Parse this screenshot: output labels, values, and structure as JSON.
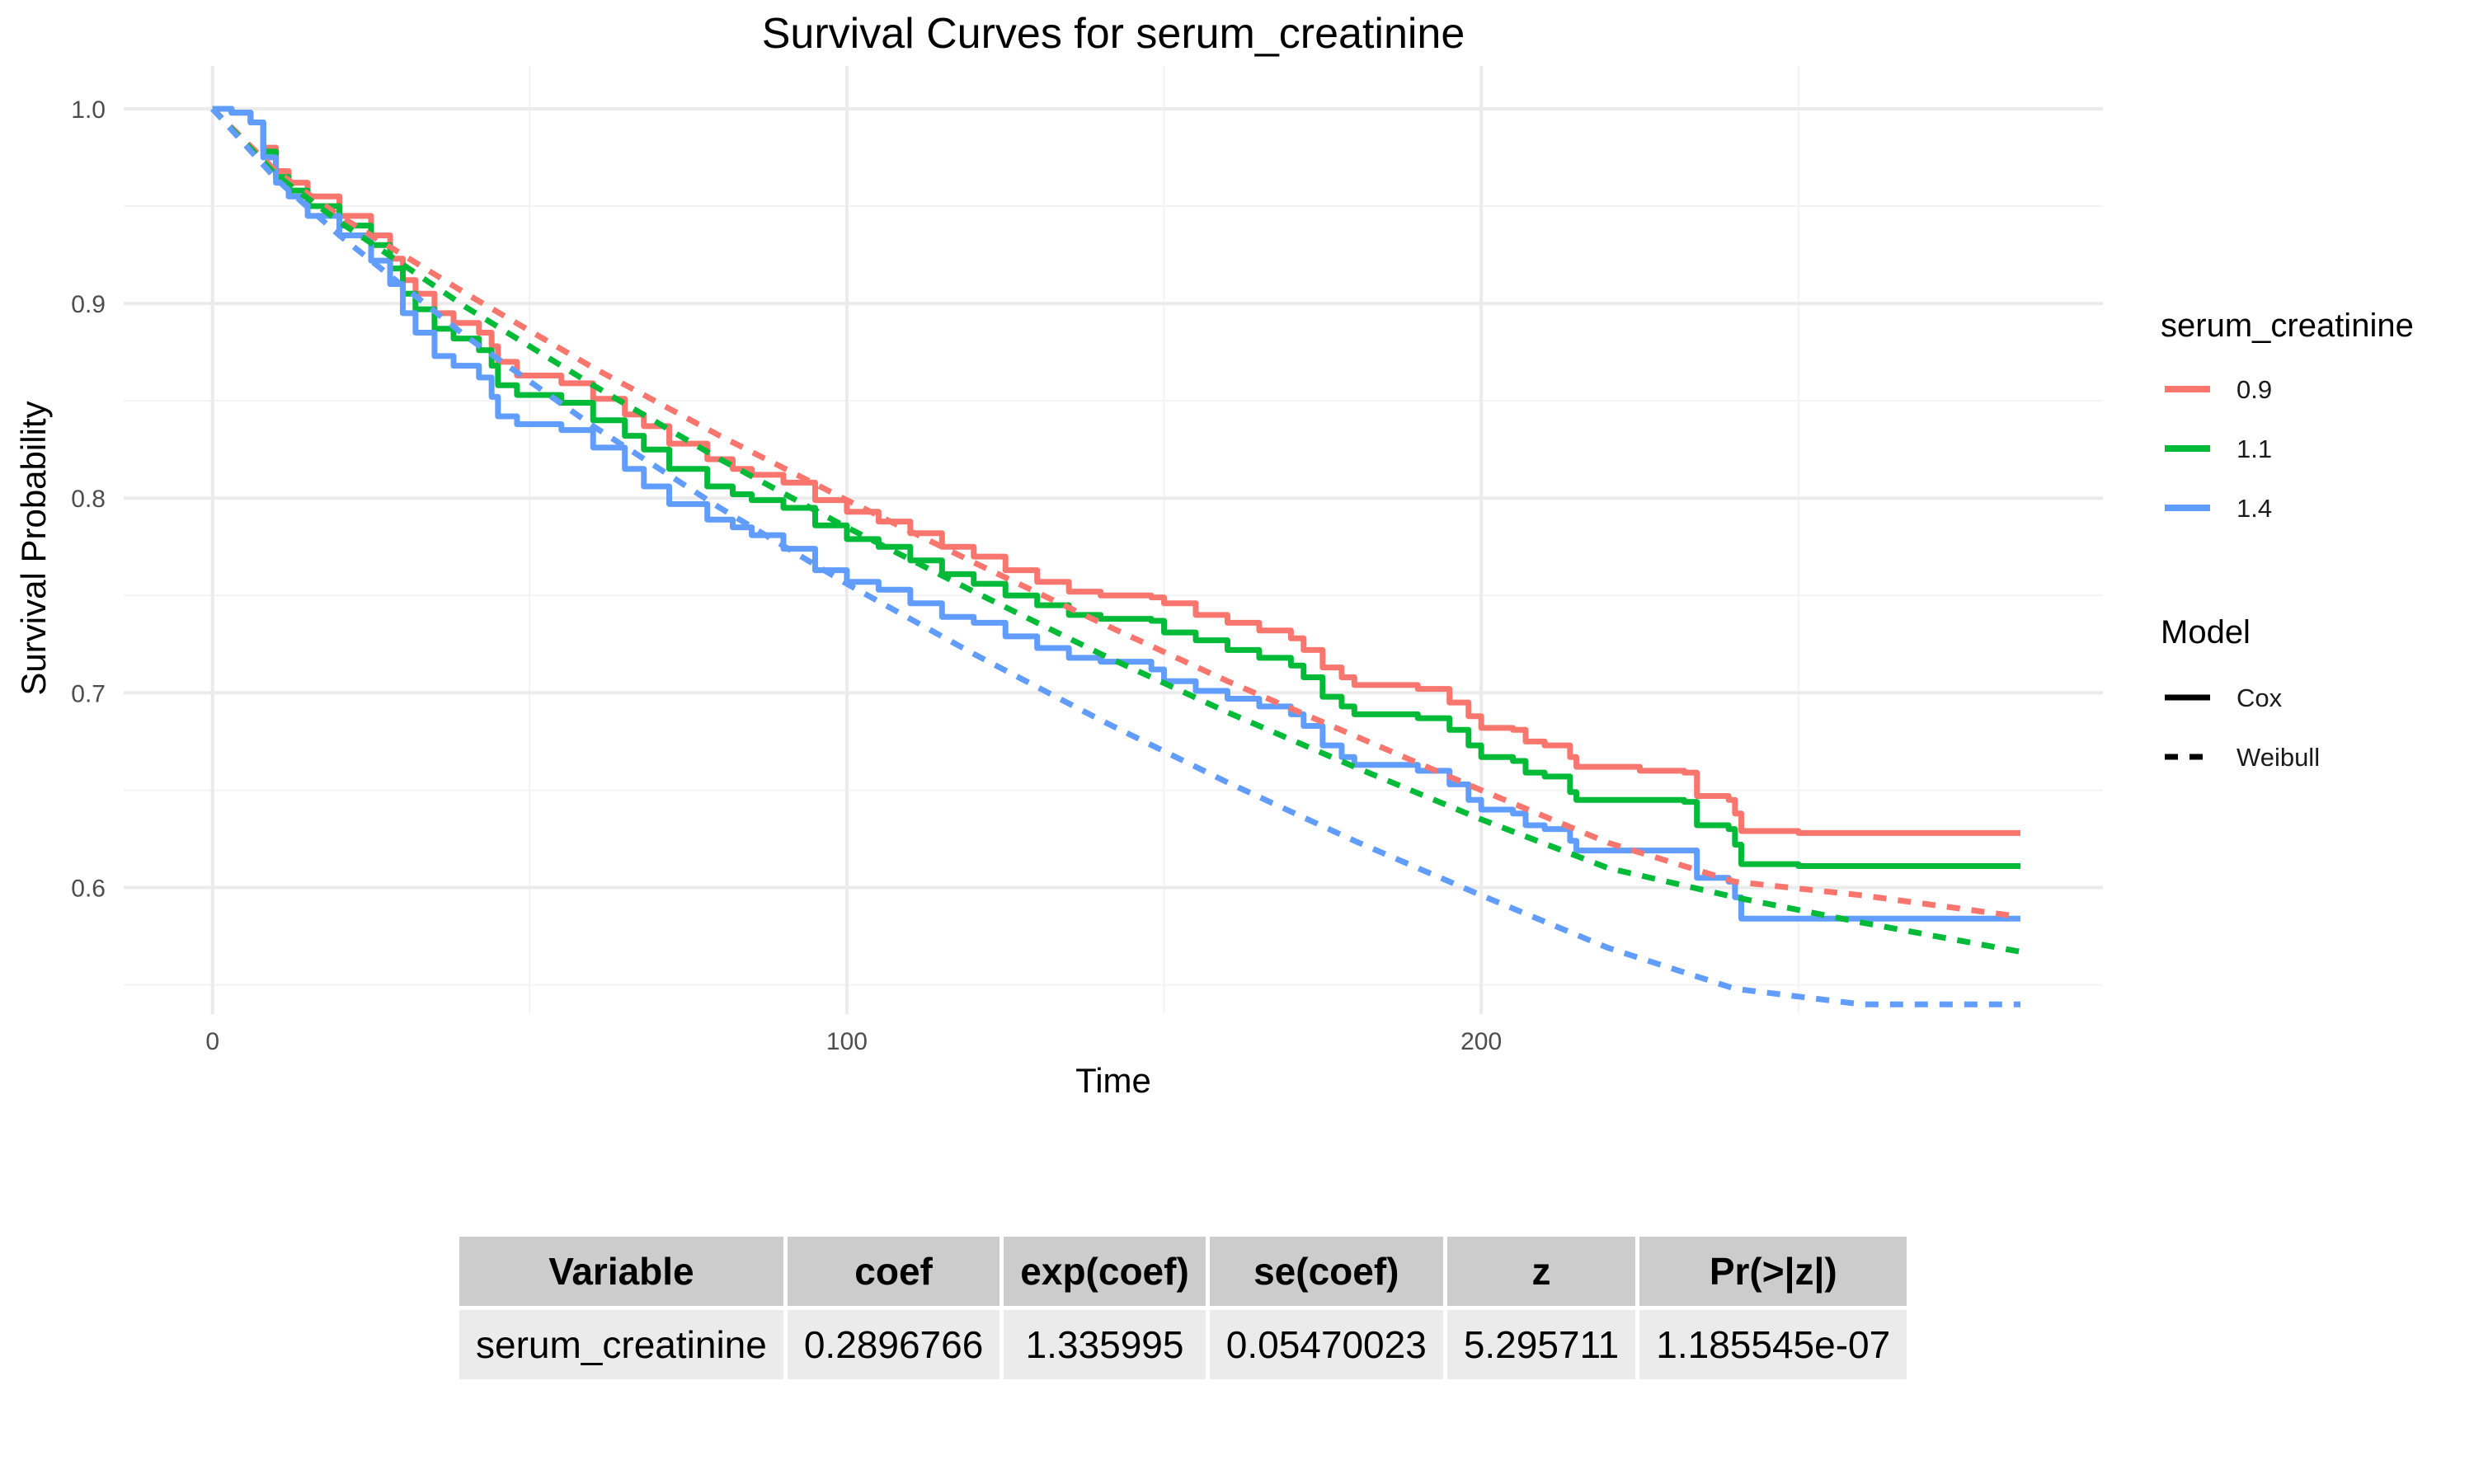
{
  "chart_data": {
    "type": "line",
    "title": "Survival Curves for serum_creatinine",
    "xlabel": "Time",
    "ylabel": "Survival Probability",
    "xlim": [
      -14,
      298
    ],
    "ylim": [
      0.535,
      1.022
    ],
    "xticks": [
      0,
      100,
      200
    ],
    "xtick_labels": [
      "0",
      "100",
      "200"
    ],
    "yticks": [
      0.6,
      0.7,
      0.8,
      0.9,
      1.0
    ],
    "ytick_labels": [
      "0.6",
      "0.7",
      "0.8",
      "0.9",
      "1.0"
    ],
    "grid": true,
    "legend": {
      "position": "right",
      "color_title": "serum_creatinine",
      "linetype_title": "Model",
      "linetype_entries": [
        "Cox",
        "Weibull"
      ]
    },
    "series": [
      {
        "name": "0.9",
        "model": "Cox",
        "color": "#f8766d",
        "points": [
          [
            0,
            1.0
          ],
          [
            3,
            0.998
          ],
          [
            6,
            0.993
          ],
          [
            8,
            0.98
          ],
          [
            10,
            0.968
          ],
          [
            12,
            0.962
          ],
          [
            15,
            0.955
          ],
          [
            20,
            0.945
          ],
          [
            25,
            0.935
          ],
          [
            28,
            0.923
          ],
          [
            30,
            0.912
          ],
          [
            32,
            0.905
          ],
          [
            35,
            0.895
          ],
          [
            38,
            0.89
          ],
          [
            42,
            0.885
          ],
          [
            44,
            0.878
          ],
          [
            45,
            0.87
          ],
          [
            48,
            0.863
          ],
          [
            55,
            0.859
          ],
          [
            60,
            0.851
          ],
          [
            65,
            0.843
          ],
          [
            68,
            0.837
          ],
          [
            72,
            0.828
          ],
          [
            78,
            0.82
          ],
          [
            82,
            0.815
          ],
          [
            85,
            0.812
          ],
          [
            90,
            0.808
          ],
          [
            95,
            0.799
          ],
          [
            100,
            0.793
          ],
          [
            105,
            0.788
          ],
          [
            110,
            0.782
          ],
          [
            115,
            0.775
          ],
          [
            120,
            0.77
          ],
          [
            125,
            0.763
          ],
          [
            130,
            0.757
          ],
          [
            135,
            0.752
          ],
          [
            140,
            0.75
          ],
          [
            148,
            0.749
          ],
          [
            150,
            0.746
          ],
          [
            155,
            0.74
          ],
          [
            160,
            0.736
          ],
          [
            165,
            0.732
          ],
          [
            170,
            0.728
          ],
          [
            172,
            0.722
          ],
          [
            175,
            0.713
          ],
          [
            178,
            0.708
          ],
          [
            180,
            0.704
          ],
          [
            190,
            0.702
          ],
          [
            195,
            0.695
          ],
          [
            198,
            0.688
          ],
          [
            200,
            0.682
          ],
          [
            205,
            0.681
          ],
          [
            207,
            0.675
          ],
          [
            210,
            0.673
          ],
          [
            214,
            0.667
          ],
          [
            215,
            0.662
          ],
          [
            225,
            0.66
          ],
          [
            232,
            0.659
          ],
          [
            234,
            0.647
          ],
          [
            239,
            0.645
          ],
          [
            240,
            0.638
          ],
          [
            241,
            0.629
          ],
          [
            250,
            0.628
          ],
          [
            285,
            0.628
          ]
        ]
      },
      {
        "name": "1.1",
        "model": "Cox",
        "color": "#00ba38",
        "points": [
          [
            0,
            1.0
          ],
          [
            3,
            0.998
          ],
          [
            6,
            0.993
          ],
          [
            8,
            0.978
          ],
          [
            10,
            0.965
          ],
          [
            12,
            0.958
          ],
          [
            15,
            0.95
          ],
          [
            20,
            0.94
          ],
          [
            25,
            0.93
          ],
          [
            28,
            0.918
          ],
          [
            30,
            0.905
          ],
          [
            32,
            0.897
          ],
          [
            35,
            0.887
          ],
          [
            38,
            0.882
          ],
          [
            42,
            0.876
          ],
          [
            44,
            0.868
          ],
          [
            45,
            0.858
          ],
          [
            48,
            0.853
          ],
          [
            55,
            0.849
          ],
          [
            60,
            0.84
          ],
          [
            65,
            0.832
          ],
          [
            68,
            0.825
          ],
          [
            72,
            0.815
          ],
          [
            78,
            0.806
          ],
          [
            82,
            0.802
          ],
          [
            85,
            0.799
          ],
          [
            90,
            0.795
          ],
          [
            95,
            0.786
          ],
          [
            100,
            0.779
          ],
          [
            105,
            0.775
          ],
          [
            110,
            0.768
          ],
          [
            115,
            0.761
          ],
          [
            120,
            0.756
          ],
          [
            125,
            0.75
          ],
          [
            130,
            0.745
          ],
          [
            135,
            0.74
          ],
          [
            140,
            0.738
          ],
          [
            148,
            0.737
          ],
          [
            150,
            0.731
          ],
          [
            155,
            0.727
          ],
          [
            160,
            0.722
          ],
          [
            165,
            0.718
          ],
          [
            170,
            0.714
          ],
          [
            172,
            0.708
          ],
          [
            175,
            0.698
          ],
          [
            178,
            0.693
          ],
          [
            180,
            0.689
          ],
          [
            190,
            0.687
          ],
          [
            195,
            0.681
          ],
          [
            198,
            0.673
          ],
          [
            200,
            0.667
          ],
          [
            205,
            0.665
          ],
          [
            207,
            0.659
          ],
          [
            210,
            0.657
          ],
          [
            214,
            0.649
          ],
          [
            215,
            0.645
          ],
          [
            225,
            0.645
          ],
          [
            232,
            0.644
          ],
          [
            234,
            0.632
          ],
          [
            239,
            0.63
          ],
          [
            240,
            0.622
          ],
          [
            241,
            0.612
          ],
          [
            250,
            0.611
          ],
          [
            285,
            0.611
          ]
        ]
      },
      {
        "name": "1.4",
        "model": "Cox",
        "color": "#619cff",
        "points": [
          [
            0,
            1.0
          ],
          [
            3,
            0.998
          ],
          [
            6,
            0.993
          ],
          [
            8,
            0.975
          ],
          [
            10,
            0.962
          ],
          [
            12,
            0.955
          ],
          [
            15,
            0.945
          ],
          [
            20,
            0.935
          ],
          [
            25,
            0.922
          ],
          [
            28,
            0.91
          ],
          [
            30,
            0.895
          ],
          [
            32,
            0.885
          ],
          [
            35,
            0.873
          ],
          [
            38,
            0.868
          ],
          [
            42,
            0.862
          ],
          [
            44,
            0.852
          ],
          [
            45,
            0.842
          ],
          [
            48,
            0.838
          ],
          [
            55,
            0.835
          ],
          [
            60,
            0.826
          ],
          [
            65,
            0.815
          ],
          [
            68,
            0.806
          ],
          [
            72,
            0.797
          ],
          [
            78,
            0.789
          ],
          [
            82,
            0.785
          ],
          [
            85,
            0.781
          ],
          [
            90,
            0.774
          ],
          [
            95,
            0.763
          ],
          [
            100,
            0.757
          ],
          [
            105,
            0.753
          ],
          [
            110,
            0.746
          ],
          [
            115,
            0.739
          ],
          [
            120,
            0.736
          ],
          [
            125,
            0.729
          ],
          [
            130,
            0.723
          ],
          [
            135,
            0.718
          ],
          [
            140,
            0.716
          ],
          [
            148,
            0.712
          ],
          [
            150,
            0.706
          ],
          [
            155,
            0.701
          ],
          [
            160,
            0.697
          ],
          [
            165,
            0.693
          ],
          [
            170,
            0.689
          ],
          [
            172,
            0.683
          ],
          [
            175,
            0.673
          ],
          [
            178,
            0.667
          ],
          [
            180,
            0.663
          ],
          [
            190,
            0.66
          ],
          [
            195,
            0.653
          ],
          [
            198,
            0.645
          ],
          [
            200,
            0.64
          ],
          [
            205,
            0.638
          ],
          [
            207,
            0.632
          ],
          [
            210,
            0.63
          ],
          [
            214,
            0.624
          ],
          [
            215,
            0.619
          ],
          [
            225,
            0.619
          ],
          [
            232,
            0.619
          ],
          [
            234,
            0.605
          ],
          [
            239,
            0.603
          ],
          [
            240,
            0.595
          ],
          [
            241,
            0.584
          ],
          [
            250,
            0.584
          ],
          [
            285,
            0.584
          ]
        ]
      },
      {
        "name": "0.9",
        "model": "Weibull",
        "color": "#f8766d",
        "points": [
          [
            0,
            1.0
          ],
          [
            10,
            0.968
          ],
          [
            20,
            0.945
          ],
          [
            40,
            0.905
          ],
          [
            60,
            0.867
          ],
          [
            80,
            0.832
          ],
          [
            100,
            0.799
          ],
          [
            120,
            0.767
          ],
          [
            140,
            0.736
          ],
          [
            160,
            0.706
          ],
          [
            180,
            0.678
          ],
          [
            200,
            0.65
          ],
          [
            220,
            0.623
          ],
          [
            240,
            0.603
          ],
          [
            260,
            0.596
          ],
          [
            285,
            0.585
          ]
        ]
      },
      {
        "name": "1.1",
        "model": "Weibull",
        "color": "#00ba38",
        "points": [
          [
            0,
            1.0
          ],
          [
            10,
            0.966
          ],
          [
            20,
            0.942
          ],
          [
            40,
            0.898
          ],
          [
            60,
            0.858
          ],
          [
            80,
            0.82
          ],
          [
            100,
            0.785
          ],
          [
            120,
            0.752
          ],
          [
            140,
            0.72
          ],
          [
            160,
            0.69
          ],
          [
            180,
            0.662
          ],
          [
            200,
            0.635
          ],
          [
            220,
            0.61
          ],
          [
            240,
            0.595
          ],
          [
            260,
            0.582
          ],
          [
            285,
            0.567
          ]
        ]
      },
      {
        "name": "1.4",
        "model": "Weibull",
        "color": "#619cff",
        "points": [
          [
            0,
            1.0
          ],
          [
            10,
            0.964
          ],
          [
            20,
            0.935
          ],
          [
            40,
            0.883
          ],
          [
            60,
            0.837
          ],
          [
            80,
            0.795
          ],
          [
            100,
            0.756
          ],
          [
            120,
            0.72
          ],
          [
            140,
            0.686
          ],
          [
            160,
            0.654
          ],
          [
            180,
            0.624
          ],
          [
            200,
            0.596
          ],
          [
            220,
            0.569
          ],
          [
            240,
            0.548
          ],
          [
            260,
            0.54
          ],
          [
            285,
            0.54
          ]
        ]
      }
    ]
  },
  "table": {
    "headers": [
      "Variable",
      "coef",
      "exp(coef)",
      "se(coef)",
      "z",
      "Pr(>|z|)"
    ],
    "rows": [
      [
        "serum_creatinine",
        "0.2896766",
        "1.335995",
        "0.05470023",
        "5.295711",
        "1.185545e-07"
      ]
    ]
  }
}
